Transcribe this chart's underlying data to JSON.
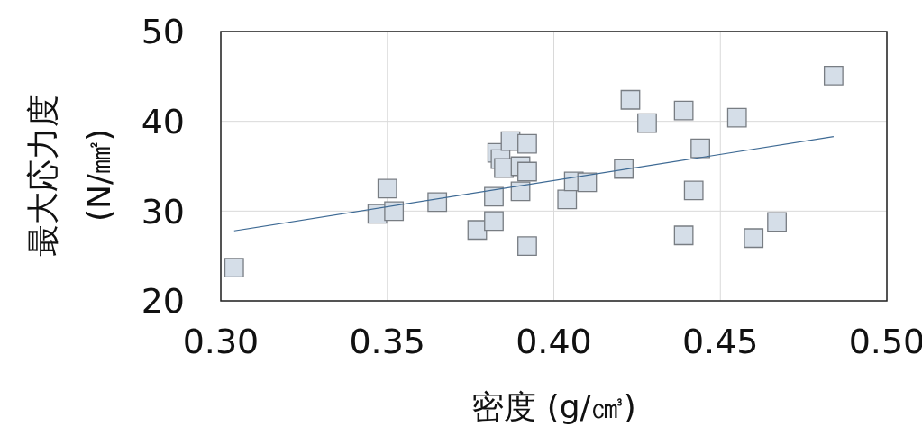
{
  "chart_data": {
    "type": "scatter",
    "xlabel": "密度 (g/㎤)",
    "ylabel": "最大応力度 (N/㎟)",
    "xlim": [
      0.3,
      0.5
    ],
    "xticks": [
      {
        "value": 0.3,
        "label": "0.30"
      },
      {
        "value": 0.35,
        "label": "0.35"
      },
      {
        "value": 0.4,
        "label": "0.40"
      },
      {
        "value": 0.45,
        "label": "0.45"
      },
      {
        "value": 0.5,
        "label": "0.50"
      }
    ],
    "ylim": [
      20,
      50
    ],
    "yticks": [
      20,
      30,
      40,
      50
    ],
    "grid": true,
    "series": [
      {
        "marker": "square",
        "color": "#d5dee8",
        "x": [
          0.304,
          0.347,
          0.35,
          0.352,
          0.365,
          0.377,
          0.382,
          0.382,
          0.383,
          0.384,
          0.385,
          0.387,
          0.392,
          0.39,
          0.392,
          0.39,
          0.392,
          0.404,
          0.406,
          0.41,
          0.421,
          0.423,
          0.428,
          0.439,
          0.439,
          0.442,
          0.444,
          0.455,
          0.46,
          0.467,
          0.484
        ],
        "values": [
          23.7,
          29.7,
          32.5,
          30.0,
          31.0,
          27.9,
          28.9,
          31.6,
          36.5,
          35.8,
          34.8,
          37.8,
          37.5,
          35.0,
          34.4,
          32.2,
          26.1,
          31.3,
          33.3,
          33.2,
          34.7,
          42.4,
          39.8,
          41.2,
          27.3,
          32.3,
          37.0,
          40.4,
          27.0,
          28.8,
          45.1
        ]
      },
      {
        "type": "line",
        "marker": "none",
        "color": "#3e6a94",
        "x": [
          0.304,
          0.484
        ],
        "values": [
          27.8,
          38.3
        ]
      }
    ]
  }
}
